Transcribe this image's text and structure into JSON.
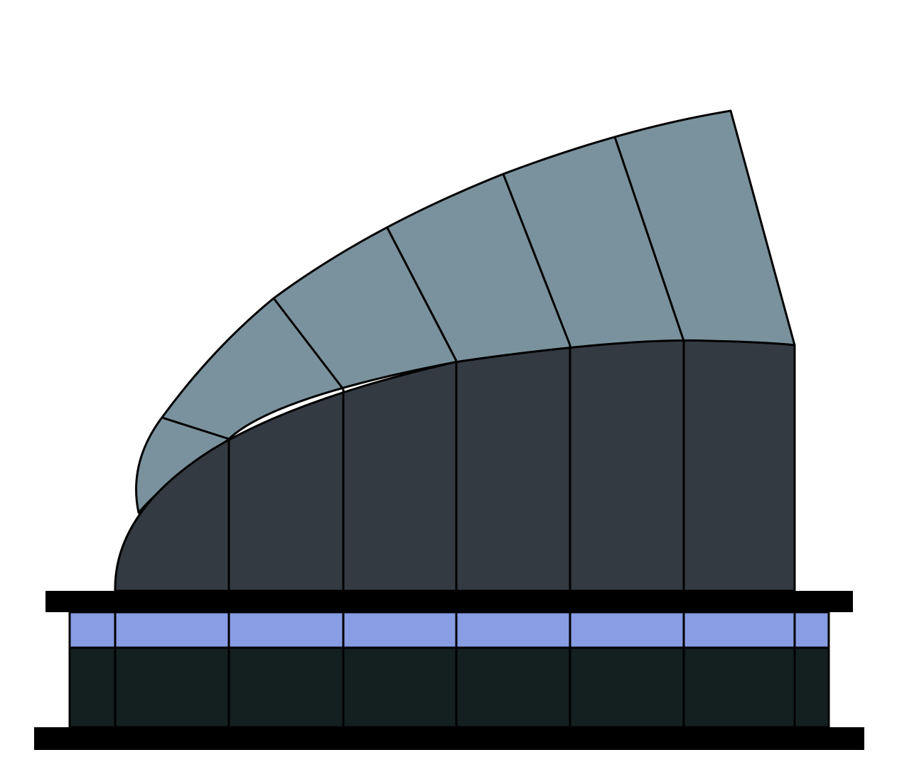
{
  "colors": {
    "background": "#ffffff",
    "roof": "#7a929d",
    "facade": "#333a42",
    "window_band": "#889de3",
    "base": "#141f1f",
    "outline": "#000000",
    "slab": "#000000"
  }
}
